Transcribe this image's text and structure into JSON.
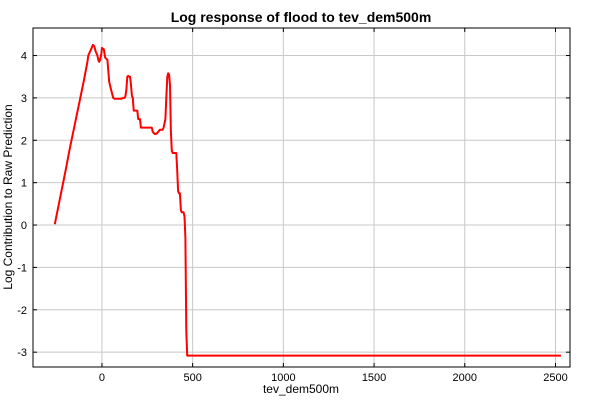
{
  "chart_data": {
    "type": "line",
    "title": "Log response of flood to tev_dem500m",
    "xlabel": "tev_dem500m",
    "ylabel": "Log Contribution to Raw Prediction",
    "xlim": [
      -380,
      2580
    ],
    "ylim": [
      -3.35,
      4.65
    ],
    "xticks": [
      0,
      500,
      1000,
      1500,
      2000,
      2500
    ],
    "yticks": [
      -3,
      -2,
      -1,
      0,
      1,
      2,
      3,
      4
    ],
    "grid": true,
    "series": [
      {
        "color": "#ff0000",
        "x": [
          -260,
          -200,
          -180,
          -100,
          -80,
          -75,
          -60,
          -50,
          -42,
          -35,
          -25,
          -20,
          -15,
          -10,
          -3,
          0,
          10,
          18,
          30,
          40,
          50,
          62,
          70,
          80,
          90,
          100,
          108,
          115,
          120,
          125,
          130,
          135,
          140,
          145,
          150,
          155,
          160,
          165,
          170,
          175,
          180,
          185,
          195,
          200,
          210,
          215,
          250,
          260,
          265,
          275,
          280,
          290,
          300,
          310,
          320,
          330,
          335,
          340,
          345,
          350,
          355,
          360,
          365,
          370,
          375,
          380,
          385,
          390,
          395,
          400,
          405,
          410,
          415,
          420,
          425,
          430,
          435,
          440,
          445,
          450,
          455,
          460,
          465,
          470,
          480,
          500,
          1000,
          2000,
          2530
        ],
        "y": [
          0.02,
          1.3,
          1.75,
          3.4,
          3.85,
          4.0,
          4.15,
          4.25,
          4.22,
          4.1,
          4.0,
          3.9,
          3.85,
          3.9,
          4.05,
          4.18,
          4.15,
          3.95,
          3.9,
          3.38,
          3.2,
          3.0,
          2.98,
          2.98,
          2.98,
          2.98,
          2.98,
          3.0,
          3.0,
          3.0,
          3.05,
          3.2,
          3.5,
          3.52,
          3.5,
          3.5,
          3.3,
          3.05,
          3.0,
          2.7,
          2.7,
          2.7,
          2.7,
          2.5,
          2.5,
          2.3,
          2.3,
          2.3,
          2.3,
          2.3,
          2.2,
          2.15,
          2.15,
          2.2,
          2.25,
          2.25,
          2.25,
          2.3,
          2.4,
          2.5,
          3.0,
          3.5,
          3.58,
          3.55,
          3.3,
          2.2,
          1.75,
          1.7,
          1.7,
          1.7,
          1.7,
          1.7,
          1.3,
          0.8,
          0.75,
          0.75,
          0.35,
          0.3,
          0.3,
          0.3,
          0.2,
          -0.3,
          -2.5,
          -3.08,
          -3.08,
          -3.08,
          -3.08,
          -3.08,
          -3.08
        ]
      }
    ]
  }
}
